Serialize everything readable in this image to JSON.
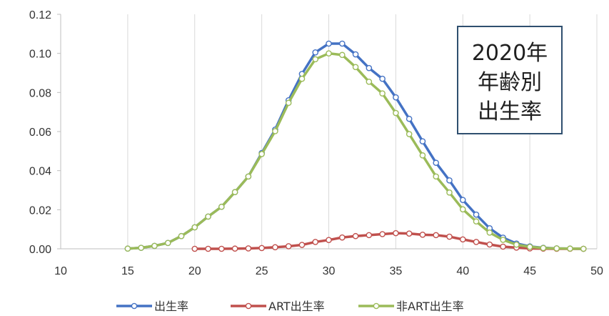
{
  "chart_data": {
    "type": "line",
    "title": "",
    "annotation": {
      "lines": [
        "2020年",
        "年齢別",
        "出生率"
      ],
      "border_color": "#2f4f6f"
    },
    "xlabel": "",
    "ylabel": "",
    "xlim": [
      10,
      50
    ],
    "ylim": [
      0,
      0.12
    ],
    "x_ticks": [
      "10",
      "15",
      "20",
      "25",
      "30",
      "35",
      "40",
      "45",
      "50"
    ],
    "y_ticks": [
      "0.00",
      "0.02",
      "0.04",
      "0.06",
      "0.08",
      "0.10",
      "0.12"
    ],
    "grid": "vertical",
    "legend_position": "bottom",
    "series": [
      {
        "name": "出生率",
        "color": "#4472c4",
        "points": [
          [
            15,
            0.0001
          ],
          [
            16,
            0.0005
          ],
          [
            17,
            0.0015
          ],
          [
            18,
            0.003
          ],
          [
            19,
            0.0065
          ],
          [
            20,
            0.011
          ],
          [
            21,
            0.0165
          ],
          [
            22,
            0.0215
          ],
          [
            23,
            0.029
          ],
          [
            24,
            0.037
          ],
          [
            25,
            0.049
          ],
          [
            26,
            0.061
          ],
          [
            27,
            0.076
          ],
          [
            28,
            0.0895
          ],
          [
            29,
            0.1005
          ],
          [
            30,
            0.105
          ],
          [
            31,
            0.105
          ],
          [
            32,
            0.0995
          ],
          [
            33,
            0.0925
          ],
          [
            34,
            0.087
          ],
          [
            35,
            0.0775
          ],
          [
            36,
            0.0665
          ],
          [
            37,
            0.055
          ],
          [
            38,
            0.044
          ],
          [
            39,
            0.035
          ],
          [
            40,
            0.025
          ],
          [
            41,
            0.0175
          ],
          [
            42,
            0.0105
          ],
          [
            43,
            0.0057
          ],
          [
            44,
            0.0027
          ],
          [
            45,
            0.0012
          ],
          [
            46,
            0.0005
          ],
          [
            47,
            0.0002
          ],
          [
            48,
            0.0001
          ],
          [
            49,
            0.0
          ]
        ]
      },
      {
        "name": "ART出生率",
        "color": "#c0504d",
        "points": [
          [
            20,
            0.0
          ],
          [
            21,
            0.0
          ],
          [
            22,
            0.0
          ],
          [
            23,
            0.0001
          ],
          [
            24,
            0.0002
          ],
          [
            25,
            0.0004
          ],
          [
            26,
            0.0008
          ],
          [
            27,
            0.0013
          ],
          [
            28,
            0.002
          ],
          [
            29,
            0.0035
          ],
          [
            30,
            0.0045
          ],
          [
            31,
            0.0058
          ],
          [
            32,
            0.0065
          ],
          [
            33,
            0.007
          ],
          [
            34,
            0.0075
          ],
          [
            35,
            0.008
          ],
          [
            36,
            0.0078
          ],
          [
            37,
            0.0072
          ],
          [
            38,
            0.007
          ],
          [
            39,
            0.0062
          ],
          [
            40,
            0.0048
          ],
          [
            41,
            0.0035
          ],
          [
            42,
            0.0022
          ],
          [
            43,
            0.0011
          ],
          [
            44,
            0.0006
          ],
          [
            45,
            0.0002
          ],
          [
            46,
            0.0001
          ],
          [
            47,
            0.0
          ],
          [
            48,
            0.0
          ],
          [
            49,
            0.0
          ]
        ]
      },
      {
        "name": "非ART出生率",
        "color": "#9bbb59",
        "points": [
          [
            15,
            0.0001
          ],
          [
            16,
            0.0005
          ],
          [
            17,
            0.0015
          ],
          [
            18,
            0.003
          ],
          [
            19,
            0.0065
          ],
          [
            20,
            0.011
          ],
          [
            21,
            0.0165
          ],
          [
            22,
            0.0215
          ],
          [
            23,
            0.029
          ],
          [
            24,
            0.037
          ],
          [
            25,
            0.0485
          ],
          [
            26,
            0.0602
          ],
          [
            27,
            0.0747
          ],
          [
            28,
            0.087
          ],
          [
            29,
            0.097
          ],
          [
            30,
            0.1
          ],
          [
            31,
            0.0992
          ],
          [
            32,
            0.093
          ],
          [
            33,
            0.0855
          ],
          [
            34,
            0.0795
          ],
          [
            35,
            0.0695
          ],
          [
            36,
            0.0587
          ],
          [
            37,
            0.0478
          ],
          [
            38,
            0.037
          ],
          [
            39,
            0.0288
          ],
          [
            40,
            0.0202
          ],
          [
            41,
            0.014
          ],
          [
            42,
            0.0083
          ],
          [
            43,
            0.0046
          ],
          [
            44,
            0.0021
          ],
          [
            45,
            0.001
          ],
          [
            46,
            0.0004
          ],
          [
            47,
            0.0002
          ],
          [
            48,
            0.0001
          ],
          [
            49,
            0.0
          ]
        ]
      }
    ]
  }
}
